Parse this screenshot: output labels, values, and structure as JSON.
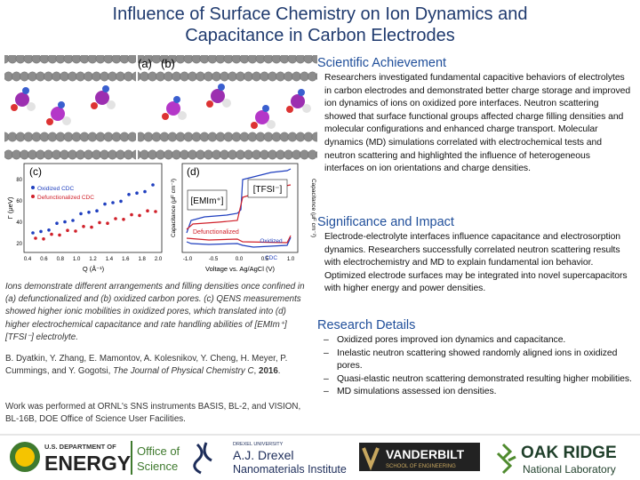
{
  "header": {
    "title_lines": [
      "Influence of Surface Chemistry on Ion Dynamics and",
      "Capacitance in Carbon Electrodes"
    ]
  },
  "figure": {
    "panel_labels": [
      "(a)",
      "(b)",
      "(c)",
      "(d)"
    ],
    "panel_c": {
      "legend": [
        "Oxidized CDC",
        "Defunctionalized CDC"
      ],
      "y_label": "Γ (μeV)",
      "x_label": "Q (Å⁻¹)",
      "xticks": [
        "0.4",
        "0.6",
        "0.8",
        "1.0",
        "1.2",
        "1.4",
        "1.6",
        "1.8",
        "2.0"
      ],
      "yticks": [
        "20",
        "40",
        "60",
        "80"
      ]
    },
    "panel_d": {
      "ion_labels": [
        "[EMIm⁺]",
        "[TFSI⁻]"
      ],
      "curve_labels": [
        "Defunctionalized",
        "Oxidized",
        "CDC"
      ],
      "x_label": "Voltage vs. Ag/AgCl (V)",
      "y_label": "Capacitance (μF cm⁻²)",
      "y2_label": "Capacitance (μF cm⁻²)",
      "xticks": [
        "-1.0",
        "-0.5",
        "0.0",
        "0.5",
        "1.0"
      ]
    }
  },
  "caption": "Ions demonstrate different arrangements and filling densities once confined in (a) defunctionalized and (b) oxidized carbon pores. (c) QENS measurements showed higher ionic mobilities in oxidized pores, which translated into (d) higher electrochemical capacitance and rate handling abilities of [EMIm⁺][TFSI⁻] electrolyte.",
  "citation": {
    "authors": "B. Dyatkin, Y. Zhang, E. Mamontov, A. Kolesnikov, Y. Cheng, H. Meyer, P. Cummings, and Y. Gogotsi,",
    "journal": "The Journal of Physical Chemistry C",
    "year": "2016"
  },
  "facilities_note": "Work was performed at ORNL's SNS instruments BASIS, BL-2, and VISION, BL-16B, DOE Office of Science User Facilities.",
  "sections": [
    {
      "heading": "Scientific Achievement",
      "body": "Researchers investigated fundamental capacitive behaviors of electrolytes in carbon electrodes and demonstrated better charge storage and improved ion dynamics of ions on oxidized pore interfaces. Neutron scattering showed that surface functional groups affected charge filling densities and molecular configurations and enhanced charge transport. Molecular dynamics (MD) simulations correlated with electrochemical tests and neutron scattering and highlighted the influence of heterogeneous interfaces on ion orientations and charge densities."
    },
    {
      "heading": "Significance and Impact",
      "body": "Electrode-electrolyte interfaces influence capacitance and electrosorption dynamics. Researchers successfully correlated neutron scattering results with electrochemistry and MD to explain fundamental ion behavior. Optimized electrode surfaces may be integrated into novel supercapacitors with higher energy and power densities."
    },
    {
      "heading": "Research Details",
      "bullets": [
        "Oxidized pores improved ion dynamics and capacitance.",
        "Inelastic neutron scattering showed randomly aligned ions in oxidized pores.",
        "Quasi-elastic neutron scattering demonstrated resulting higher mobilities.",
        "MD simulations assessed ion densities."
      ]
    }
  ],
  "footer": {
    "doe": [
      "U.S. DEPARTMENT OF",
      "ENERGY"
    ],
    "office": [
      "Office of",
      "Science"
    ],
    "drexel": [
      "DREXEL UNIVERSITY",
      "A.J. Drexel",
      "Nanomaterials Institute"
    ],
    "vanderbilt": [
      "VANDERBILT",
      "SCHOOL OF ENGINEERING"
    ],
    "ornl": [
      "OAK RIDGE",
      "National Laboratory"
    ]
  }
}
